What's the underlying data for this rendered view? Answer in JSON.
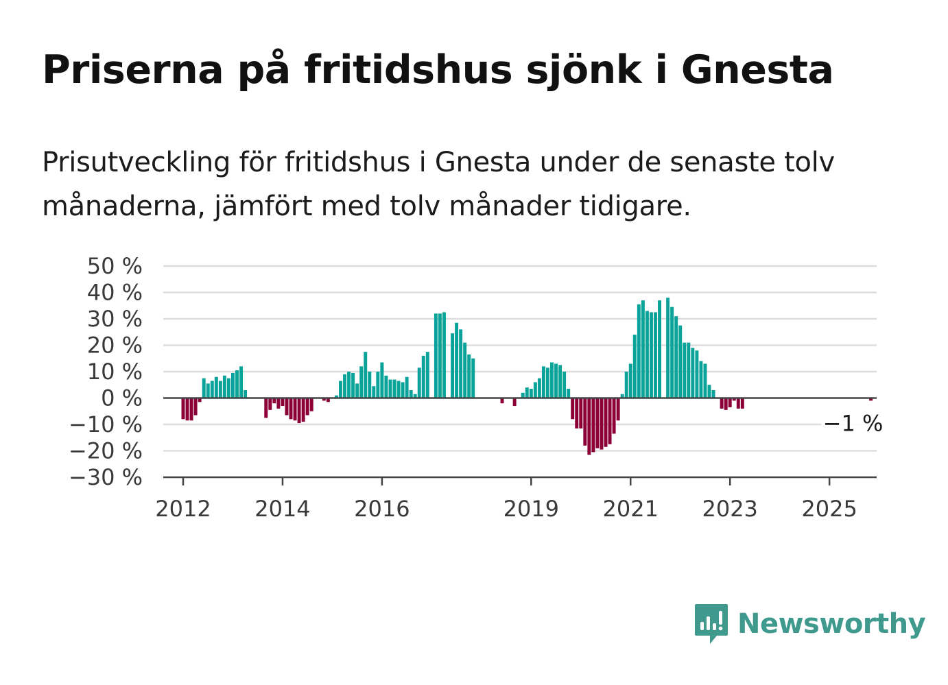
{
  "title": "Priserna på fritidshus sjönk i Gnesta",
  "subtitle": "Prisutveckling för fritidshus i Gnesta under de senaste tolv månaderna, jämfört med tolv månader tidigare.",
  "brand": {
    "name": "Newsworthy",
    "icon": "newsworthy-logo-icon"
  },
  "colors": {
    "positive": "#0aa39a",
    "negative": "#8c0038",
    "grid": "#dddddd",
    "axis": "#444444"
  },
  "chart_data": {
    "type": "bar",
    "xlabel": "",
    "ylabel": "",
    "ylim": [
      -30,
      50
    ],
    "yticks": [
      50,
      40,
      30,
      20,
      10,
      0,
      -10,
      -20,
      -30
    ],
    "ytick_labels": [
      "50 %",
      "40 %",
      "30 %",
      "20 %",
      "10 %",
      "0 %",
      "−10 %",
      "−20 %",
      "−30 %"
    ],
    "xticks": [
      {
        "label": "2012",
        "x": 2012.0
      },
      {
        "label": "2014",
        "x": 2014.0
      },
      {
        "label": "2016",
        "x": 2016.0
      },
      {
        "label": "2019",
        "x": 2019.0
      },
      {
        "label": "2021",
        "x": 2021.0
      },
      {
        "label": "2023",
        "x": 2023.0
      },
      {
        "label": "2025",
        "x": 2025.0
      }
    ],
    "grid": true,
    "start_month": "2012-01",
    "values": [
      -8,
      -8.5,
      -8.5,
      -6.5,
      -1.5,
      7.5,
      5.5,
      6.5,
      8,
      6.5,
      8.5,
      7.5,
      9.5,
      10.5,
      12,
      3,
      null,
      null,
      null,
      null,
      -7.5,
      -4.5,
      -2,
      -4,
      -3,
      -6.5,
      -8,
      -8.5,
      -9.5,
      -9,
      -6.5,
      -5,
      null,
      null,
      -1,
      -1.5,
      null,
      1,
      6.5,
      9,
      10,
      9.5,
      5.5,
      12,
      17.5,
      10,
      4.5,
      10,
      13.5,
      8.5,
      7,
      7,
      6.5,
      6,
      8,
      3,
      1.5,
      11.5,
      16,
      17.5,
      null,
      32,
      32,
      32.5,
      null,
      24.5,
      28.5,
      26,
      21,
      16.5,
      15,
      null,
      null,
      null,
      null,
      null,
      null,
      -2,
      null,
      null,
      -3,
      null,
      2,
      4,
      3.5,
      6,
      7.5,
      12,
      11.5,
      13.5,
      13,
      12.5,
      10,
      3.5,
      -8,
      -11.5,
      -11.5,
      -18,
      -21.5,
      -20.5,
      -19,
      -19.5,
      -18.5,
      -17.5,
      -13.5,
      -8.5,
      1.5,
      10,
      13,
      24,
      35.5,
      37,
      33,
      32.5,
      32.5,
      37,
      null,
      38,
      34.5,
      31,
      27.5,
      21,
      21,
      19,
      18,
      14,
      13,
      5,
      3,
      null,
      -4,
      -4.5,
      -3.5,
      -1,
      -4,
      -4,
      null,
      null,
      null,
      null,
      null,
      null,
      null,
      null,
      null,
      null,
      null,
      null,
      null,
      null,
      null,
      null,
      null,
      null,
      null,
      null,
      null,
      null,
      null,
      null,
      null,
      null,
      null,
      null,
      null,
      null,
      -1
    ],
    "annotations": [
      {
        "text": "−1 %",
        "x": "2025-07",
        "y": -1
      }
    ]
  }
}
